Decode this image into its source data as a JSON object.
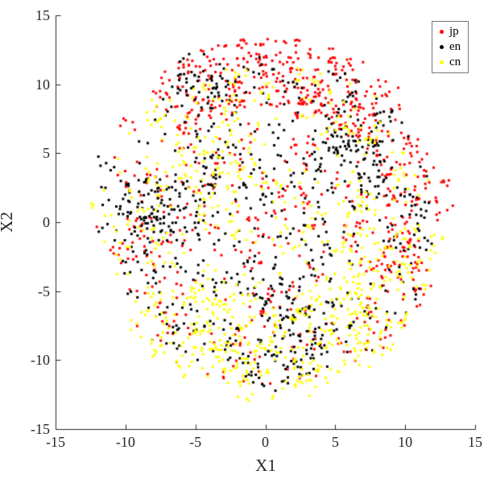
{
  "figure": {
    "background": "#ffffff",
    "spine_color": "#262626",
    "tick_label_color": "#262626",
    "legend_border_color": "#777777"
  },
  "chart_data": {
    "type": "scatter",
    "title": "",
    "xlabel": "X1",
    "ylabel": "X2",
    "xlim": [
      -15,
      15
    ],
    "ylim": [
      -15,
      15
    ],
    "xticks": [
      -15,
      -10,
      -5,
      0,
      5,
      10,
      15
    ],
    "xtick_labels": [
      "-15",
      "-10",
      "-5",
      "0",
      "5",
      "10",
      "15"
    ],
    "yticks": [
      -15,
      -10,
      -5,
      0,
      5,
      10,
      15
    ],
    "ytick_labels": [
      "-15",
      "-10",
      "-5",
      "0",
      "5",
      "10",
      "15"
    ],
    "grid": false,
    "box": "off",
    "tick_direction": "in",
    "legend": {
      "position": "top-right",
      "entries": [
        {
          "label": "jp",
          "color": "#ff0000"
        },
        {
          "label": "en",
          "color": "#000000"
        },
        {
          "label": "cn",
          "color": "#ffff00"
        }
      ]
    },
    "blob": {
      "center": [
        0.3,
        0.0
      ],
      "max_radius": 13.6
    },
    "series": [
      {
        "name": "jp",
        "color": "#ff0000",
        "marker": "dot",
        "count": 880,
        "seed": 7,
        "clump_prob": 0.3,
        "clump_sigma": 0.5,
        "components": [
          {
            "type": "disk",
            "weight": 0.55,
            "center": [
              0.3,
              0.2
            ],
            "radius": 12.4
          },
          {
            "type": "arc",
            "weight": 0.3,
            "center": [
              0.3,
              0.2
            ],
            "angle_deg": 90,
            "spread_deg": 45,
            "r_min": 8.2,
            "r_max": 13.3
          },
          {
            "type": "arc",
            "weight": 0.15,
            "center": [
              0.3,
              0.2
            ],
            "angle_deg": 10,
            "spread_deg": 40,
            "r_min": 8.5,
            "r_max": 13.0
          }
        ]
      },
      {
        "name": "en",
        "color": "#000000",
        "marker": "dot",
        "count": 860,
        "seed": 13,
        "clump_prob": 0.3,
        "clump_sigma": 0.45,
        "components": [
          {
            "type": "disk",
            "weight": 0.6,
            "center": [
              0.2,
              0.1
            ],
            "radius": 12.0
          },
          {
            "type": "gauss",
            "weight": 0.15,
            "center": [
              -7.4,
              0.9
            ],
            "sigma": 1.9
          },
          {
            "type": "gauss",
            "weight": 0.09,
            "center": [
              6.4,
              5.9
            ],
            "sigma": 1.6
          },
          {
            "type": "gauss",
            "weight": 0.05,
            "center": [
              -4.5,
              10.0
            ],
            "sigma": 1.2
          },
          {
            "type": "gauss",
            "weight": 0.11,
            "center": [
              1.5,
              -8.2
            ],
            "sigma": 2.2
          }
        ]
      },
      {
        "name": "cn",
        "color": "#ffff00",
        "marker": "dot",
        "count": 880,
        "seed": 29,
        "clump_prob": 0.32,
        "clump_sigma": 0.5,
        "components": [
          {
            "type": "disk",
            "weight": 0.56,
            "center": [
              0.3,
              -0.4
            ],
            "radius": 12.2
          },
          {
            "type": "arc",
            "weight": 0.28,
            "center": [
              0.3,
              0.0
            ],
            "angle_deg": -90,
            "spread_deg": 55,
            "r_min": 6.5,
            "r_max": 12.9
          },
          {
            "type": "gauss",
            "weight": 0.08,
            "center": [
              -4.2,
              4.2
            ],
            "sigma": 1.9
          },
          {
            "type": "gauss",
            "weight": 0.08,
            "center": [
              7.5,
              -3.0
            ],
            "sigma": 2.0
          }
        ]
      }
    ]
  }
}
